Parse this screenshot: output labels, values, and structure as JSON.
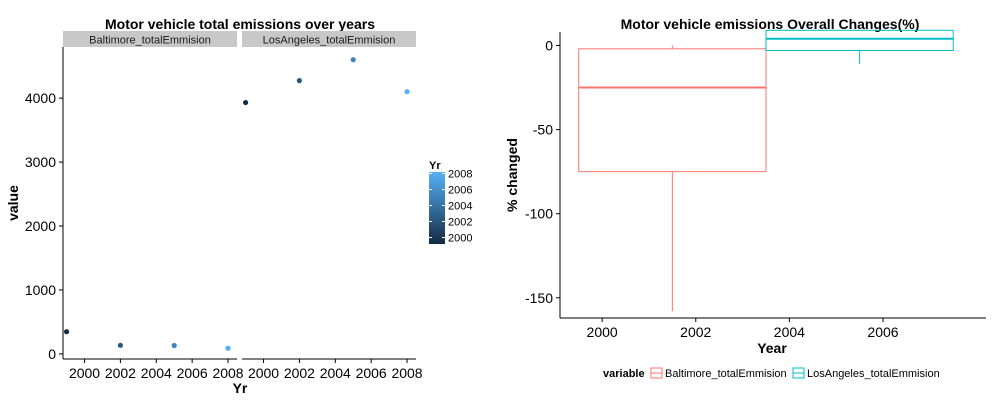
{
  "chart_data": [
    {
      "type": "scatter",
      "title": "Motor vehicle total emissions over years",
      "xlabel": "Yr",
      "ylabel": "value",
      "ylim": [
        -80,
        4800
      ],
      "xlim": [
        1998.8,
        2008.5
      ],
      "x_ticks": [
        2000,
        2002,
        2004,
        2006,
        2008
      ],
      "y_ticks": [
        0,
        1000,
        2000,
        3000,
        4000
      ],
      "facets": [
        {
          "label": "Baltimore_totalEmmision",
          "points": [
            {
              "x": 1999,
              "y": 347
            },
            {
              "x": 2002,
              "y": 134
            },
            {
              "x": 2005,
              "y": 131
            },
            {
              "x": 2008,
              "y": 88
            }
          ]
        },
        {
          "label": "LosAngeles_totalEmmision",
          "points": [
            {
              "x": 1999,
              "y": 3931
            },
            {
              "x": 2002,
              "y": 4274
            },
            {
              "x": 2005,
              "y": 4601
            },
            {
              "x": 2008,
              "y": 4101
            }
          ]
        }
      ],
      "legend": {
        "title": "Yr",
        "labels": [
          "2008",
          "2006",
          "2004",
          "2002",
          "2000"
        ],
        "color_low": "#132B43",
        "color_high": "#56B1F7",
        "range": [
          1999,
          2008
        ],
        "placement": "right"
      },
      "grid": false
    },
    {
      "type": "box",
      "title": "Motor vehicle emissions Overall Changes(%)",
      "xlabel": "Year",
      "ylabel": "% changed",
      "xlim": [
        1999.1,
        2008.2
      ],
      "ylim": [
        -162,
        8
      ],
      "x_ticks": [
        2000,
        2002,
        2004,
        2006
      ],
      "y_ticks": [
        0,
        -50,
        -100,
        -150
      ],
      "series": [
        {
          "name": "Baltimore_totalEmmision",
          "color": "#F8766D",
          "x_range": [
            1999.5,
            2003.5
          ],
          "center_x": 2001.5,
          "min": -158,
          "q1": -75,
          "median": -25,
          "q3": -2,
          "max": 0
        },
        {
          "name": "LosAngeles_totalEmmision",
          "color": "#00BFC4",
          "x_range": [
            2003.5,
            2007.5
          ],
          "center_x": 2005.5,
          "min": -11,
          "q1": -3,
          "median": 4,
          "q3": 9,
          "max": 9
        }
      ],
      "legend": {
        "title": "variable",
        "placement": "bottom"
      },
      "grid": false
    }
  ]
}
